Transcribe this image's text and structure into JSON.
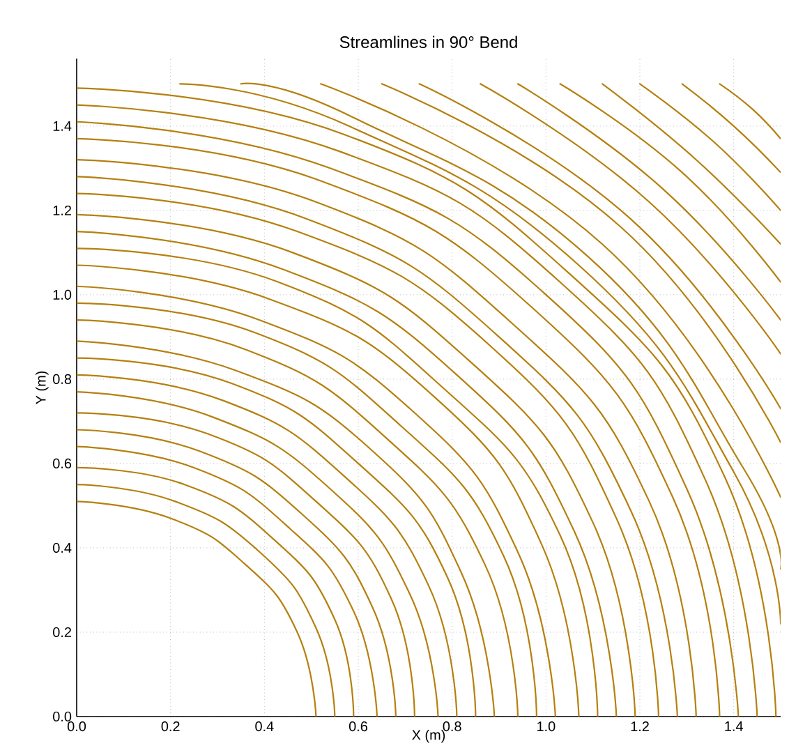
{
  "chart_data": {
    "type": "line",
    "title": "Streamlines in 90° Bend",
    "xlabel": "X (m)",
    "ylabel": "Y (m)",
    "xlim": [
      0,
      1.5
    ],
    "ylim": [
      0,
      1.56
    ],
    "xticks": [
      {
        "value": 0,
        "label": "0.0"
      },
      {
        "value": 0.2,
        "label": "0.2"
      },
      {
        "value": 0.4,
        "label": "0.4"
      },
      {
        "value": 0.6,
        "label": "0.6"
      },
      {
        "value": 0.8,
        "label": "0.8"
      },
      {
        "value": 1.0,
        "label": "1.0"
      },
      {
        "value": 1.2,
        "label": "1.2"
      },
      {
        "value": 1.4,
        "label": "1.4"
      }
    ],
    "yticks": [
      {
        "value": 0,
        "label": "0.0"
      },
      {
        "value": 0.2,
        "label": "0.2"
      },
      {
        "value": 0.4,
        "label": "0.4"
      },
      {
        "value": 0.6,
        "label": "0.6"
      },
      {
        "value": 0.8,
        "label": "0.8"
      },
      {
        "value": 1.0,
        "label": "1.0"
      },
      {
        "value": 1.2,
        "label": "1.2"
      },
      {
        "value": 1.4,
        "label": "1.4"
      }
    ],
    "grid": true,
    "marker": "none",
    "line_style": "solid",
    "series": [
      {
        "color": "#b5800f",
        "x": [
          0.51,
          0.47,
          0.36,
          0.2,
          0
        ],
        "values": [
          0,
          0.2,
          0.36,
          0.47,
          0.51
        ]
      },
      {
        "color": "#b5800f",
        "x": [
          0.55,
          0.51,
          0.39,
          0.21,
          0
        ],
        "values": [
          0,
          0.21,
          0.39,
          0.51,
          0.55
        ]
      },
      {
        "color": "#b5800f",
        "x": [
          0.59,
          0.55,
          0.42,
          0.23,
          0
        ],
        "values": [
          0,
          0.23,
          0.42,
          0.55,
          0.59
        ]
      },
      {
        "color": "#b5800f",
        "x": [
          0.64,
          0.59,
          0.45,
          0.25,
          0
        ],
        "values": [
          0,
          0.25,
          0.45,
          0.59,
          0.64
        ]
      },
      {
        "color": "#b5800f",
        "x": [
          0.68,
          0.63,
          0.48,
          0.26,
          0
        ],
        "values": [
          0,
          0.26,
          0.48,
          0.63,
          0.68
        ]
      },
      {
        "color": "#b5800f",
        "x": [
          0.72,
          0.67,
          0.51,
          0.28,
          0
        ],
        "values": [
          0,
          0.28,
          0.51,
          0.67,
          0.72
        ]
      },
      {
        "color": "#b5800f",
        "x": [
          0.77,
          0.71,
          0.54,
          0.29,
          0
        ],
        "values": [
          0,
          0.29,
          0.54,
          0.71,
          0.77
        ]
      },
      {
        "color": "#b5800f",
        "x": [
          0.81,
          0.75,
          0.57,
          0.31,
          0
        ],
        "values": [
          0,
          0.31,
          0.57,
          0.75,
          0.81
        ]
      },
      {
        "color": "#b5800f",
        "x": [
          0.85,
          0.79,
          0.6,
          0.33,
          0
        ],
        "values": [
          0,
          0.33,
          0.6,
          0.79,
          0.85
        ]
      },
      {
        "color": "#b5800f",
        "x": [
          0.89,
          0.82,
          0.63,
          0.34,
          0
        ],
        "values": [
          0,
          0.34,
          0.63,
          0.82,
          0.89
        ]
      },
      {
        "color": "#b5800f",
        "x": [
          0.94,
          0.87,
          0.66,
          0.36,
          0
        ],
        "values": [
          0,
          0.36,
          0.66,
          0.87,
          0.94
        ]
      },
      {
        "color": "#b5800f",
        "x": [
          0.98,
          0.91,
          0.69,
          0.38,
          0
        ],
        "values": [
          0,
          0.38,
          0.69,
          0.91,
          0.98
        ]
      },
      {
        "color": "#b5800f",
        "x": [
          1.02,
          0.94,
          0.72,
          0.39,
          0
        ],
        "values": [
          0,
          0.39,
          0.72,
          0.94,
          1.02
        ]
      },
      {
        "color": "#b5800f",
        "x": [
          1.07,
          0.99,
          0.76,
          0.41,
          0
        ],
        "values": [
          0,
          0.41,
          0.76,
          0.99,
          1.07
        ]
      },
      {
        "color": "#b5800f",
        "x": [
          1.11,
          1.03,
          0.78,
          0.43,
          0
        ],
        "values": [
          0,
          0.43,
          0.78,
          1.03,
          1.11
        ]
      },
      {
        "color": "#b5800f",
        "x": [
          1.15,
          1.06,
          0.81,
          0.44,
          0
        ],
        "values": [
          0,
          0.44,
          0.81,
          1.06,
          1.15
        ]
      },
      {
        "color": "#b5800f",
        "x": [
          1.19,
          1.1,
          0.84,
          0.46,
          0
        ],
        "values": [
          0,
          0.46,
          0.84,
          1.1,
          1.19
        ]
      },
      {
        "color": "#b5800f",
        "x": [
          1.24,
          1.15,
          0.88,
          0.47,
          0
        ],
        "values": [
          0,
          0.47,
          0.88,
          1.15,
          1.24
        ]
      },
      {
        "color": "#b5800f",
        "x": [
          1.28,
          1.18,
          0.9,
          0.49,
          0
        ],
        "values": [
          0,
          0.49,
          0.9,
          1.18,
          1.28
        ]
      },
      {
        "color": "#b5800f",
        "x": [
          1.32,
          1.22,
          0.93,
          0.51,
          0
        ],
        "values": [
          0,
          0.51,
          0.93,
          1.22,
          1.32
        ]
      },
      {
        "color": "#b5800f",
        "x": [
          1.37,
          1.27,
          0.97,
          0.52,
          0
        ],
        "values": [
          0,
          0.52,
          0.97,
          1.27,
          1.37
        ]
      },
      {
        "color": "#b5800f",
        "x": [
          1.41,
          1.3,
          1.0,
          0.54,
          0
        ],
        "values": [
          0,
          0.54,
          1.0,
          1.3,
          1.41
        ]
      },
      {
        "color": "#b5800f",
        "x": [
          1.45,
          1.34,
          1.03,
          0.56,
          0
        ],
        "values": [
          0,
          0.56,
          1.03,
          1.34,
          1.45
        ]
      },
      {
        "color": "#b5800f",
        "x": [
          1.49,
          1.38,
          1.05,
          0.57,
          0
        ],
        "values": [
          0,
          0.57,
          1.05,
          1.38,
          1.49
        ]
      },
      {
        "color": "#b5800f",
        "x": [
          1.5,
          1.4,
          1.07,
          0.58,
          0.22
        ],
        "values": [
          0.22,
          0.58,
          1.07,
          1.4,
          1.5
        ]
      },
      {
        "color": "#b5800f",
        "x": [
          1.5,
          1.42,
          1.09,
          0.59,
          0.35
        ],
        "values": [
          0.35,
          0.59,
          1.09,
          1.42,
          1.5
        ]
      },
      {
        "color": "#b5800f",
        "x": [
          1.5,
          1.12,
          0.52
        ],
        "values": [
          0.52,
          1.12,
          1.5
        ]
      },
      {
        "color": "#b5800f",
        "x": [
          1.5,
          1.16,
          0.65
        ],
        "values": [
          0.65,
          1.16,
          1.5
        ]
      },
      {
        "color": "#b5800f",
        "x": [
          1.5,
          1.18,
          0.73
        ],
        "values": [
          0.73,
          1.18,
          1.5
        ]
      },
      {
        "color": "#b5800f",
        "x": [
          1.5,
          1.22,
          0.86
        ],
        "values": [
          0.86,
          1.22,
          1.5
        ]
      },
      {
        "color": "#b5800f",
        "x": [
          1.5,
          1.25,
          0.94
        ],
        "values": [
          0.94,
          1.25,
          1.5
        ]
      },
      {
        "color": "#b5800f",
        "x": [
          1.5,
          1.29,
          1.03
        ],
        "values": [
          1.03,
          1.29,
          1.5
        ]
      },
      {
        "color": "#b5800f",
        "x": [
          1.5,
          1.32,
          1.12
        ],
        "values": [
          1.12,
          1.32,
          1.5
        ]
      },
      {
        "color": "#b5800f",
        "x": [
          1.5,
          1.36,
          1.2
        ],
        "values": [
          1.2,
          1.36,
          1.5
        ]
      },
      {
        "color": "#b5800f",
        "x": [
          1.5,
          1.4,
          1.29
        ],
        "values": [
          1.29,
          1.4,
          1.5
        ]
      },
      {
        "color": "#b5800f",
        "x": [
          1.5,
          1.44,
          1.37
        ],
        "values": [
          1.37,
          1.44,
          1.5
        ]
      }
    ]
  }
}
